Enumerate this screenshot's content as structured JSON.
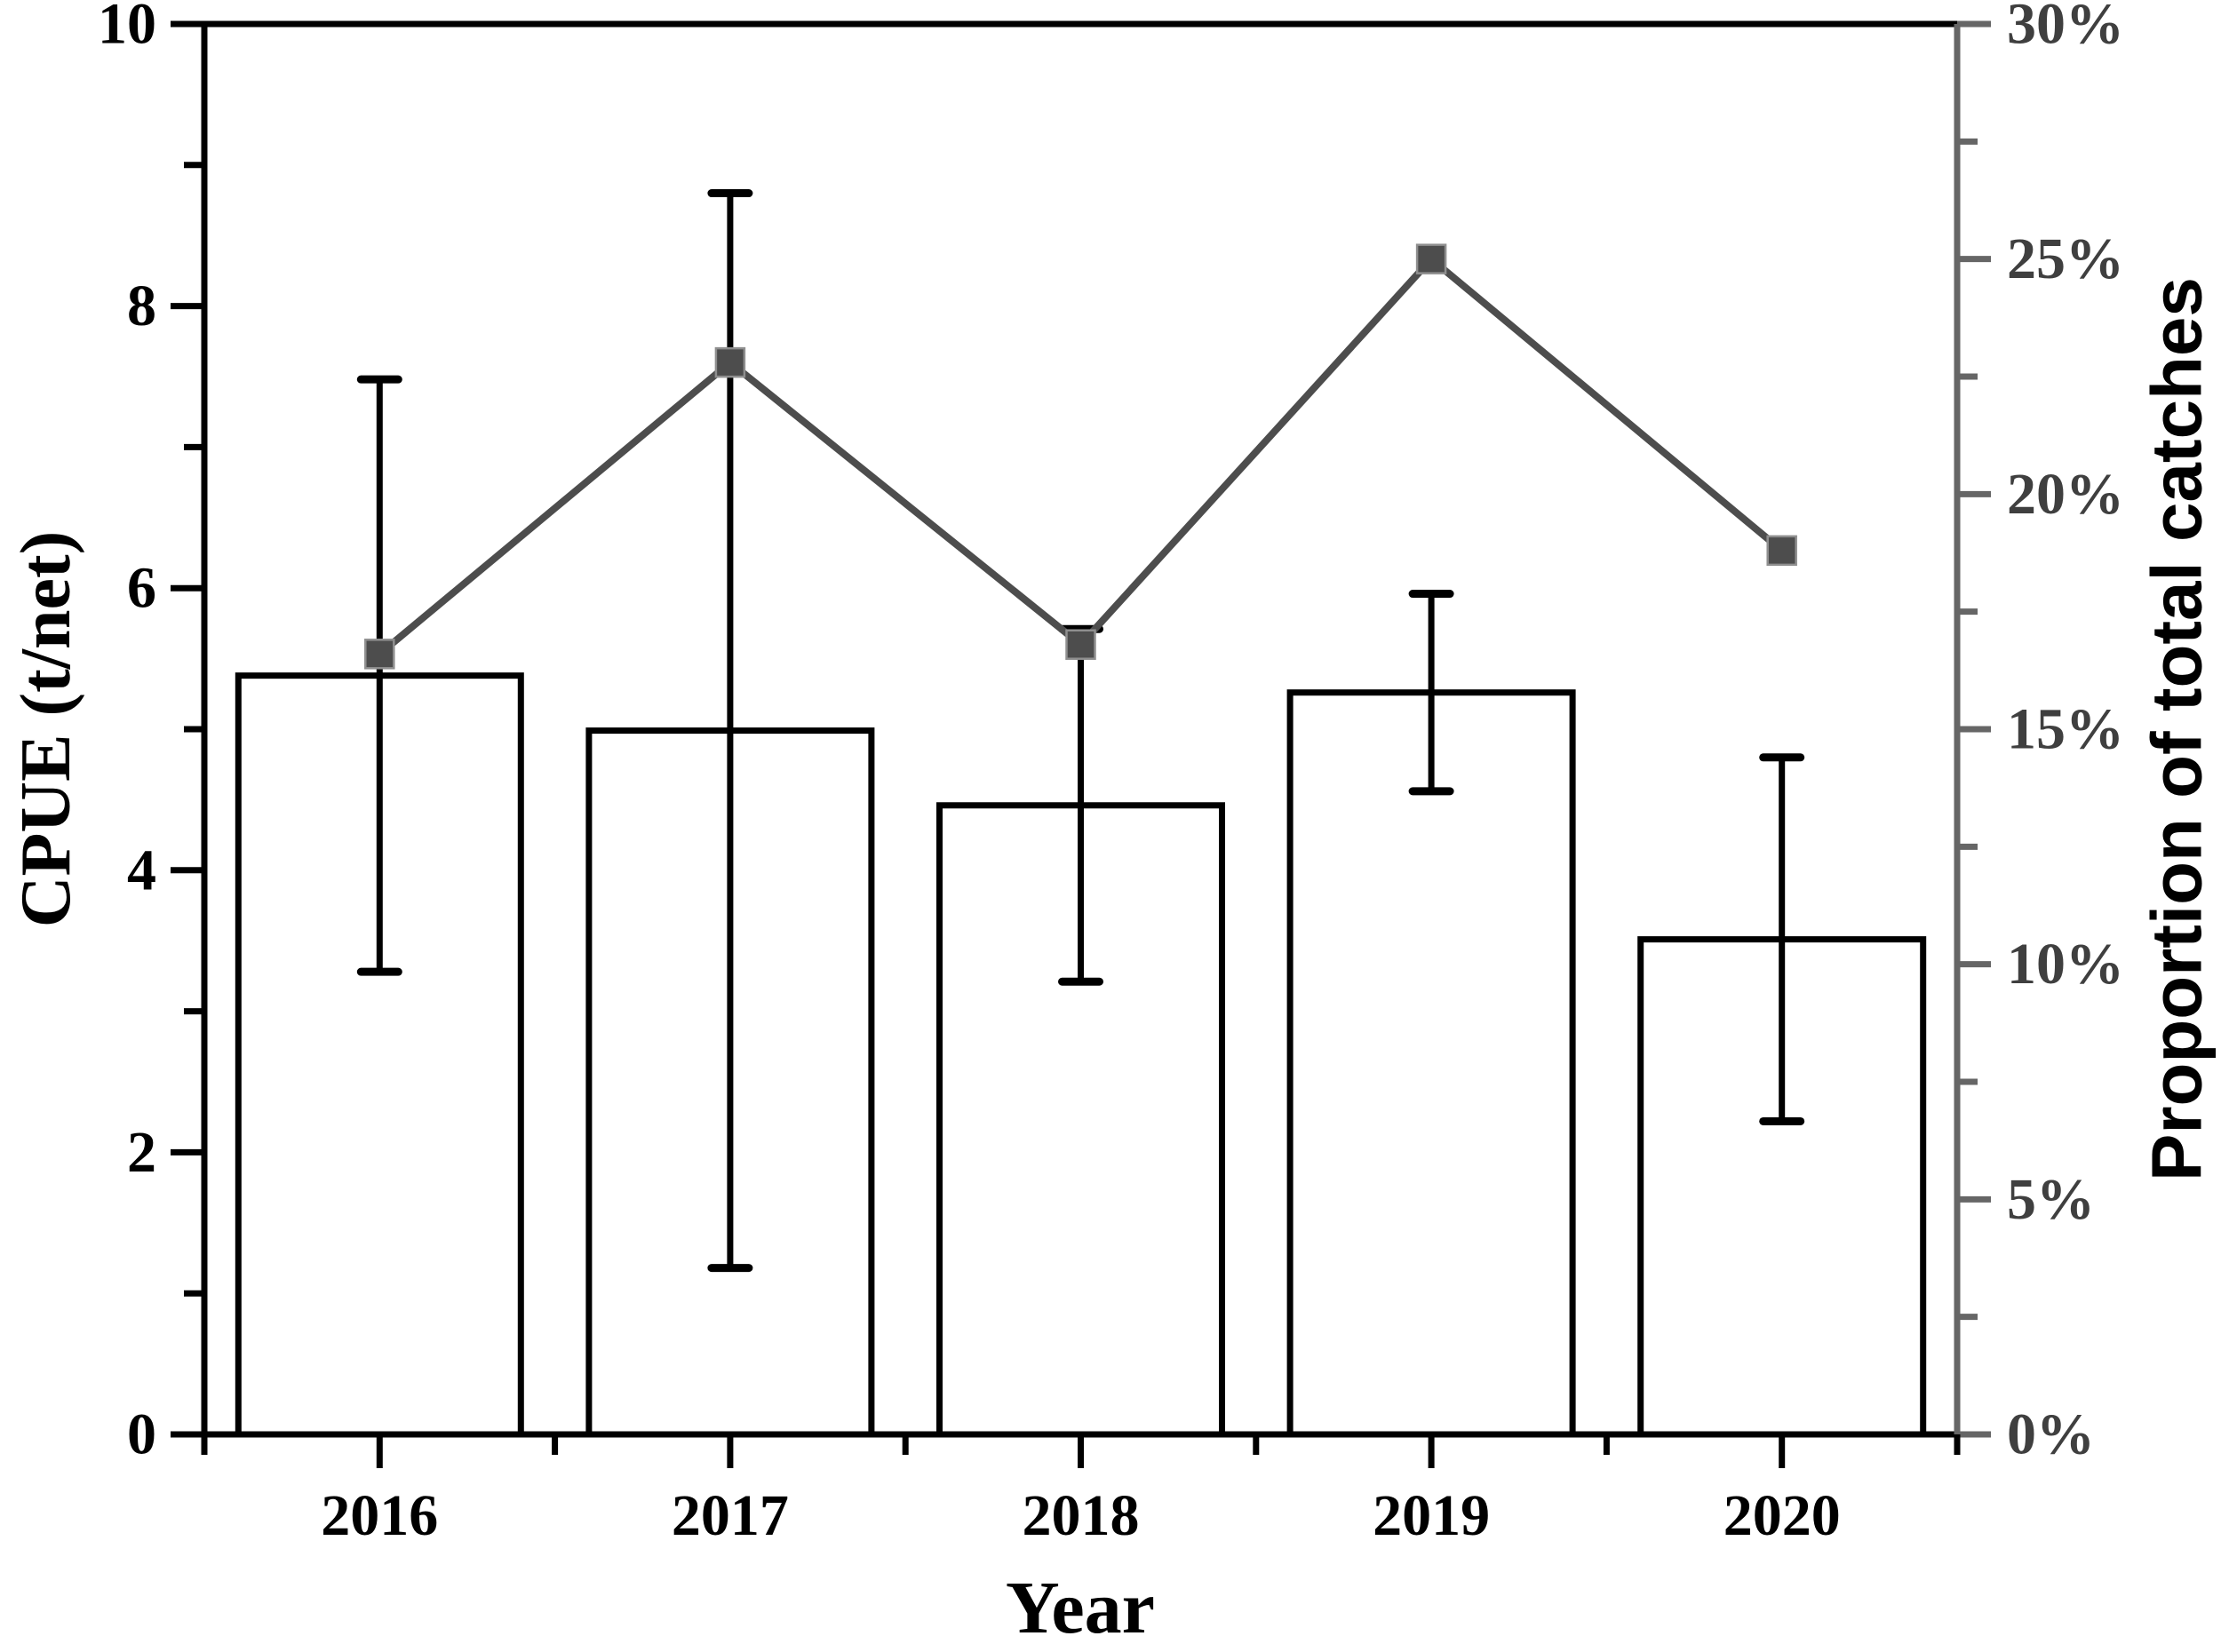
{
  "chart_data": {
    "type": "combo-bar-line-dual-axis",
    "categories": [
      "2016",
      "2017",
      "2018",
      "2019",
      "2020"
    ],
    "series": [
      {
        "name": "CPUE",
        "type": "bar",
        "axis": "left",
        "values": [
          5.38,
          4.99,
          4.46,
          5.26,
          3.51
        ],
        "error": [
          2.1,
          3.81,
          1.25,
          0.7,
          1.29
        ]
      },
      {
        "name": "Proportion of total catches",
        "type": "line",
        "axis": "right",
        "values_percent": [
          16.6,
          22.8,
          16.8,
          25.0,
          18.8
        ]
      }
    ],
    "xlabel": "Year",
    "ylabel_left": "CPUE (t/net)",
    "ylabel_right": "Proportion of total catches",
    "ylim_left": [
      0,
      10
    ],
    "ylim_right_percent": [
      0,
      30
    ],
    "yticks_left": [
      "10",
      "8",
      "6",
      "4",
      "2",
      "0"
    ],
    "yticks_left_values": [
      10,
      8,
      6,
      4,
      2,
      0
    ],
    "minor_yticks_left_values": [
      9,
      7,
      5,
      3,
      1
    ],
    "yticks_right": [
      "30%",
      "25%",
      "20%",
      "15%",
      "10%",
      "5%",
      "0%"
    ],
    "yticks_right_values": [
      30,
      25,
      20,
      15,
      10,
      5,
      0
    ],
    "minor_yticks_right_values": [
      27.5,
      22.5,
      17.5,
      12.5,
      7.5,
      2.5
    ],
    "grid": "off",
    "legend": "none",
    "colors": {
      "bar_fill": "#ffffff",
      "bar_edge": "#000000",
      "error_bar": "#000000",
      "line": "#4d4d4d",
      "marker_fill": "#4d4d4d",
      "marker_edge": "#8f8f8f",
      "left_axis": "#000000",
      "right_axis": "#666666",
      "right_tick_label": "#3f3f3f"
    }
  }
}
